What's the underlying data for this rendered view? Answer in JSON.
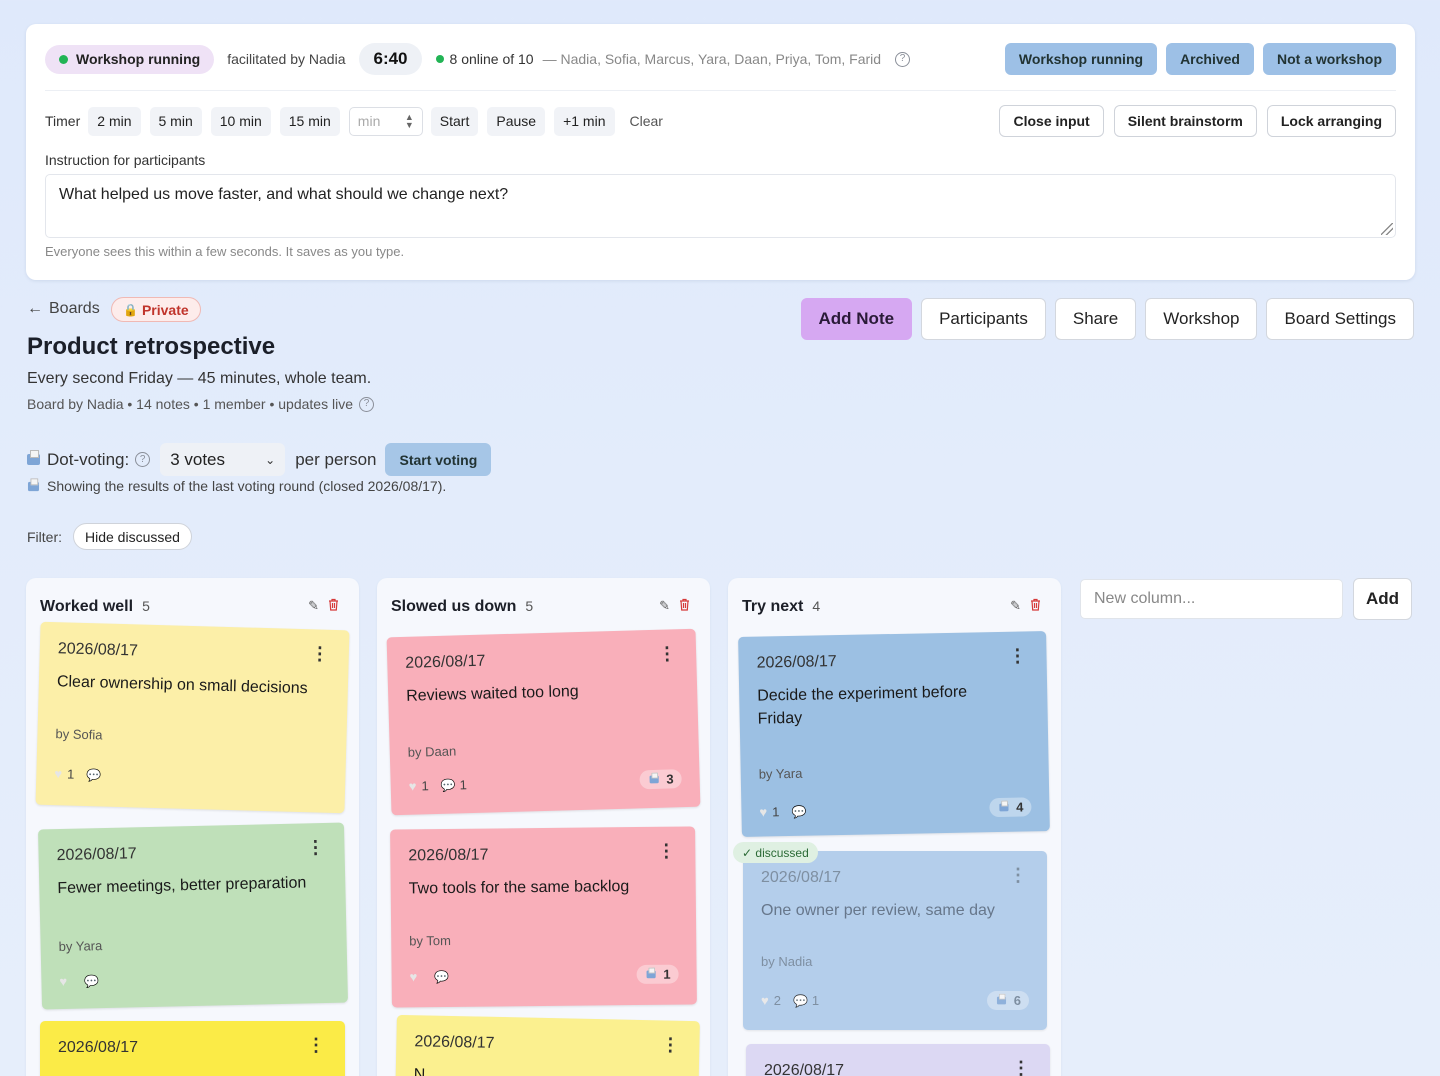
{
  "workshop": {
    "status_label": "Workshop running",
    "facilitator_text": "facilitated by Nadia",
    "timer_display": "6:40",
    "online_text": "8 online of 10",
    "participants_text": "— Nadia, Sofia, Marcus, Yara, Daan, Priya, Tom, Farid",
    "modes": [
      "Workshop running",
      "Archived",
      "Not a workshop"
    ]
  },
  "timer": {
    "label": "Timer",
    "presets": [
      "2 min",
      "5 min",
      "10 min",
      "15 min"
    ],
    "minutes_placeholder": "min",
    "start_label": "Start",
    "pause_label": "Pause",
    "add_minute_label": "+1 min",
    "clear_label": "Clear"
  },
  "controls": [
    "Close input",
    "Silent brainstorm",
    "Lock arranging"
  ],
  "instruction": {
    "label": "Instruction for participants",
    "text": "What helped us move faster, and what should we change next?",
    "hint": "Everyone sees this within a few seconds. It saves as you type."
  },
  "board": {
    "back_label": "Boards",
    "privacy_label": "Private",
    "title": "Product retrospective",
    "description": "Every second Friday — 45 minutes, whole team.",
    "meta": "Board by Nadia • 14 notes • 1 member • updates live"
  },
  "actions": [
    "Add Note",
    "Participants",
    "Share",
    "Workshop",
    "Board Settings"
  ],
  "voting": {
    "label": "Dot-voting:",
    "selected": "3 votes",
    "per_person": "per person",
    "start_label": "Start voting",
    "info": "Showing the results of the last voting round (closed 2026/08/17)."
  },
  "filter": {
    "label": "Filter:",
    "hide_discussed": "Hide discussed"
  },
  "columns": [
    {
      "title": "Worked well",
      "count": "5",
      "notes": [
        {
          "date": "2026/08/17",
          "text": "Clear ownership on small decisions",
          "author": "by Sofia",
          "likes": "1",
          "comments": "",
          "votes": "",
          "color": "#fcefa8"
        },
        {
          "date": "2026/08/17",
          "text": "Fewer meetings, better preparation",
          "author": "by Yara",
          "likes": "",
          "comments": "",
          "votes": "",
          "color": "#bfe0b9"
        },
        {
          "date": "2026/08/17",
          "text": "",
          "author": "",
          "likes": "",
          "comments": "",
          "votes": "",
          "color": "#fbeb47"
        }
      ]
    },
    {
      "title": "Slowed us down",
      "count": "5",
      "notes": [
        {
          "date": "2026/08/17",
          "text": "Reviews waited too long",
          "author": "by Daan",
          "likes": "1",
          "comments": "1",
          "votes": "3",
          "color": "#f9afba"
        },
        {
          "date": "2026/08/17",
          "text": "Two tools for the same backlog",
          "author": "by Tom",
          "likes": "",
          "comments": "",
          "votes": "1",
          "color": "#f9afba"
        },
        {
          "date": "2026/08/17",
          "text": "N",
          "author": "",
          "likes": "",
          "comments": "",
          "votes": "",
          "color": "#fbf08f"
        }
      ]
    },
    {
      "title": "Try next",
      "count": "4",
      "notes": [
        {
          "date": "2026/08/17",
          "text": "Decide the experiment before Friday",
          "author": "by Yara",
          "likes": "1",
          "comments": "",
          "votes": "4",
          "color": "#9cc0e3"
        },
        {
          "date": "2026/08/17",
          "text": "One owner per review, same day",
          "author": "by Nadia",
          "likes": "2",
          "comments": "1",
          "votes": "6",
          "color": "#a9c7e8"
        },
        {
          "date": "2026/08/17",
          "text": "",
          "author": "",
          "likes": "",
          "comments": "",
          "votes": "",
          "color": "#dcd8f3"
        }
      ]
    }
  ],
  "discussed_label": "✓ discussed",
  "new_column": {
    "placeholder": "New column...",
    "add_label": "Add"
  },
  "colors": {
    "accent_add_note": "#d6a8f2",
    "mode_button": "#9dc0e6",
    "online_dot": "#22b455",
    "private_text": "#c0342b"
  }
}
